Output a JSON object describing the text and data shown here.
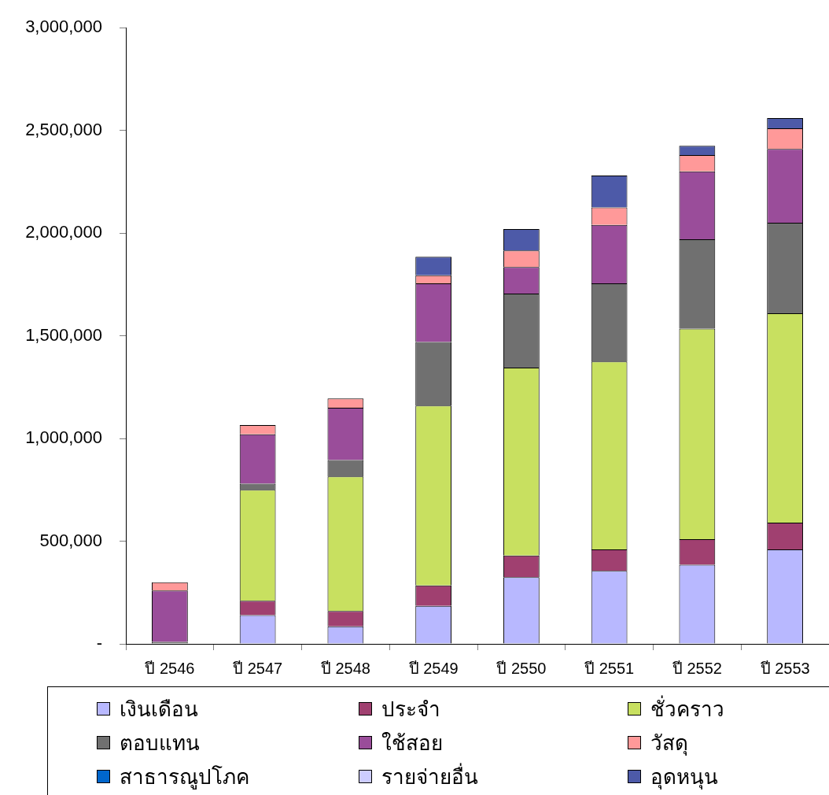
{
  "chart_data": {
    "type": "bar",
    "stacked": true,
    "legend": "bottom",
    "categories": [
      "ปี 2546",
      "ปี 2547",
      "ปี 2548",
      "ปี 2549",
      "ปี 2550",
      "ปี 2551",
      "ปี 2552",
      "ปี 2553"
    ],
    "ylim": [
      0,
      3000000
    ],
    "yticks": [
      {
        "value": 0,
        "label": "-"
      },
      {
        "value": 500000,
        "label": "500,000"
      },
      {
        "value": 1000000,
        "label": "1,000,000"
      },
      {
        "value": 1500000,
        "label": "1,500,000"
      },
      {
        "value": 2000000,
        "label": "2,000,000"
      },
      {
        "value": 2500000,
        "label": "2,500,000"
      },
      {
        "value": 3000000,
        "label": "3,000,000"
      }
    ],
    "series": [
      {
        "name": "เงินเดือน",
        "color": "#b8b8ff",
        "values": [
          0,
          140000,
          85000,
          185000,
          325000,
          355000,
          385000,
          460000
        ]
      },
      {
        "name": "ประจำ",
        "color": "#a04070",
        "values": [
          0,
          70000,
          75000,
          100000,
          105000,
          105000,
          125000,
          130000
        ]
      },
      {
        "name": "ชั่วคราว",
        "color": "#c8e060",
        "values": [
          0,
          540000,
          655000,
          875000,
          915000,
          915000,
          1025000,
          1020000
        ]
      },
      {
        "name": "ตอบแทน",
        "color": "#707070",
        "values": [
          10000,
          30000,
          80000,
          310000,
          360000,
          380000,
          435000,
          440000
        ]
      },
      {
        "name": "ใช้สอย",
        "color": "#9a4d9a",
        "values": [
          250000,
          240000,
          255000,
          285000,
          130000,
          285000,
          330000,
          360000
        ]
      },
      {
        "name": "วัสดุ",
        "color": "#ff9999",
        "values": [
          40000,
          45000,
          45000,
          40000,
          80000,
          85000,
          80000,
          100000
        ]
      },
      {
        "name": "สาธารณูปโภค",
        "color": "#0066cc",
        "values": [
          0,
          0,
          0,
          0,
          0,
          0,
          0,
          0
        ]
      },
      {
        "name": "รายจ่ายอื่น",
        "color": "#ccccff",
        "values": [
          0,
          0,
          0,
          0,
          0,
          0,
          0,
          0
        ]
      },
      {
        "name": "อุดหนุน",
        "color": "#4d5aa8",
        "values": [
          0,
          0,
          0,
          90000,
          105000,
          155000,
          45000,
          50000
        ]
      }
    ]
  }
}
